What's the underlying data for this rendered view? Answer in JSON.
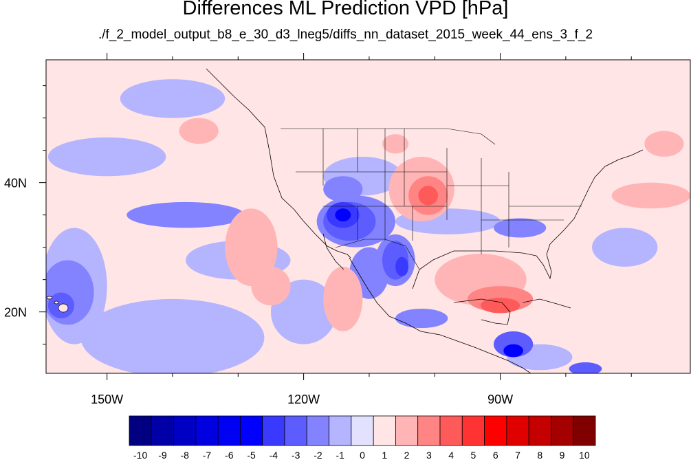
{
  "title": "Differences ML Prediction VPD [hPa]",
  "subtitle": "./f_2_model_output_b8_e_30_d3_lneg5/diffs_nn_dataset_2015_week_44_ens_3_f_2",
  "map": {
    "lon_range": [
      -159.3,
      -61.0
    ],
    "lat_range": [
      10.5,
      59.0
    ],
    "lon_ticks": [
      {
        "value": -150,
        "label": "150W"
      },
      {
        "value": -120,
        "label": "120W"
      },
      {
        "value": -90,
        "label": "90W"
      }
    ],
    "lat_ticks": [
      {
        "value": 40,
        "label": "40N"
      },
      {
        "value": 20,
        "label": "20N"
      }
    ],
    "minor_lon_ticks": [
      -140,
      -130,
      -110,
      -100,
      -80,
      -70
    ],
    "minor_lat_ticks": [
      15,
      25,
      30,
      35,
      45,
      50,
      55
    ]
  },
  "colorbar": {
    "labels": [
      "-10",
      "-9",
      "-8",
      "-7",
      "-6",
      "-5",
      "-4",
      "-3",
      "-2",
      "-1",
      "0",
      "1",
      "2",
      "3",
      "4",
      "5",
      "6",
      "7",
      "8",
      "9",
      "10"
    ],
    "colors": [
      "#000080",
      "#0000a6",
      "#0000c5",
      "#0000e0",
      "#0000f2",
      "#0000ff",
      "#3a3aff",
      "#5c5cff",
      "#8383ff",
      "#b4b4ff",
      "#e2e2ff",
      "#ffe5e5",
      "#ffb5b5",
      "#ff8585",
      "#ff5a5a",
      "#ff3333",
      "#ff0000",
      "#e00000",
      "#c40000",
      "#a40000",
      "#800000"
    ]
  },
  "field": {
    "background_color": "#ffe5e5",
    "regions": [
      {
        "level": -1,
        "lon": -150,
        "lat": 44,
        "rx": 9,
        "ry": 3
      },
      {
        "level": -1,
        "lon": -140,
        "lat": 53,
        "rx": 8,
        "ry": 3
      },
      {
        "level": -1,
        "lon": -155,
        "lat": 24,
        "rx": 5,
        "ry": 9
      },
      {
        "level": -2,
        "lon": -156,
        "lat": 23,
        "rx": 4,
        "ry": 5
      },
      {
        "level": -3,
        "lon": -157,
        "lat": 21,
        "rx": 2,
        "ry": 2
      },
      {
        "level": -1,
        "lon": -140,
        "lat": 16,
        "rx": 14,
        "ry": 6
      },
      {
        "level": -2,
        "lon": -138,
        "lat": 35,
        "rx": 9,
        "ry": 2
      },
      {
        "level": -1,
        "lon": -130,
        "lat": 28,
        "rx": 8,
        "ry": 3
      },
      {
        "level": -1,
        "lon": -98,
        "lat": 34,
        "rx": 8,
        "ry": 2
      },
      {
        "level": -2,
        "lon": -87,
        "lat": 33,
        "rx": 4,
        "ry": 1.5
      },
      {
        "level": -1,
        "lon": -71,
        "lat": 30,
        "rx": 5,
        "ry": 3
      },
      {
        "level": -1,
        "lon": -111,
        "lat": 41,
        "rx": 6,
        "ry": 3
      },
      {
        "level": -2,
        "lon": -114,
        "lat": 39,
        "rx": 3,
        "ry": 2
      },
      {
        "level": -2,
        "lon": -112,
        "lat": 34,
        "rx": 6,
        "ry": 4
      },
      {
        "level": -3,
        "lon": -113,
        "lat": 34,
        "rx": 4,
        "ry": 3
      },
      {
        "level": -4,
        "lon": -114,
        "lat": 35,
        "rx": 2.5,
        "ry": 2
      },
      {
        "level": -5,
        "lon": -114,
        "lat": 35,
        "rx": 1.2,
        "ry": 1
      },
      {
        "level": -2,
        "lon": -106,
        "lat": 28,
        "rx": 3,
        "ry": 4
      },
      {
        "level": -3,
        "lon": -106,
        "lat": 28,
        "rx": 2,
        "ry": 3
      },
      {
        "level": -4,
        "lon": -105,
        "lat": 27,
        "rx": 1,
        "ry": 1.5
      },
      {
        "level": -2,
        "lon": -110,
        "lat": 26,
        "rx": 3,
        "ry": 4
      },
      {
        "level": -2,
        "lon": -102,
        "lat": 19,
        "rx": 4,
        "ry": 1.5
      },
      {
        "level": -3,
        "lon": -88,
        "lat": 15,
        "rx": 3,
        "ry": 2
      },
      {
        "level": -5,
        "lon": -88,
        "lat": 14,
        "rx": 1.5,
        "ry": 1
      },
      {
        "level": -3,
        "lon": -77,
        "lat": 11.2,
        "rx": 2.5,
        "ry": 1
      },
      {
        "level": -1,
        "lon": -84,
        "lat": 13,
        "rx": 5,
        "ry": 2
      },
      {
        "level": -1,
        "lon": -120,
        "lat": 20,
        "rx": 5,
        "ry": 5
      },
      {
        "level": 2,
        "lon": -128,
        "lat": 30,
        "rx": 4,
        "ry": 6
      },
      {
        "level": 2,
        "lon": -114,
        "lat": 22,
        "rx": 3,
        "ry": 5
      },
      {
        "level": 2,
        "lon": -125,
        "lat": 24,
        "rx": 3,
        "ry": 3
      },
      {
        "level": 2,
        "lon": -136,
        "lat": 48,
        "rx": 3,
        "ry": 2
      },
      {
        "level": 2,
        "lon": -102,
        "lat": 39,
        "rx": 5,
        "ry": 5
      },
      {
        "level": 3,
        "lon": -101,
        "lat": 38,
        "rx": 3,
        "ry": 3
      },
      {
        "level": 4,
        "lon": -101,
        "lat": 38,
        "rx": 1.5,
        "ry": 1.5
      },
      {
        "level": 2,
        "lon": -93,
        "lat": 25,
        "rx": 7,
        "ry": 4
      },
      {
        "level": 3,
        "lon": -90,
        "lat": 22,
        "rx": 5,
        "ry": 2
      },
      {
        "level": 4,
        "lon": -90,
        "lat": 21,
        "rx": 3,
        "ry": 1.2
      },
      {
        "level": 2,
        "lon": -67,
        "lat": 38,
        "rx": 6,
        "ry": 2
      },
      {
        "level": 2,
        "lon": -65,
        "lat": 46,
        "rx": 3,
        "ry": 2
      },
      {
        "level": 2,
        "lon": -106,
        "lat": 46,
        "rx": 2,
        "ry": 1.5
      }
    ]
  }
}
